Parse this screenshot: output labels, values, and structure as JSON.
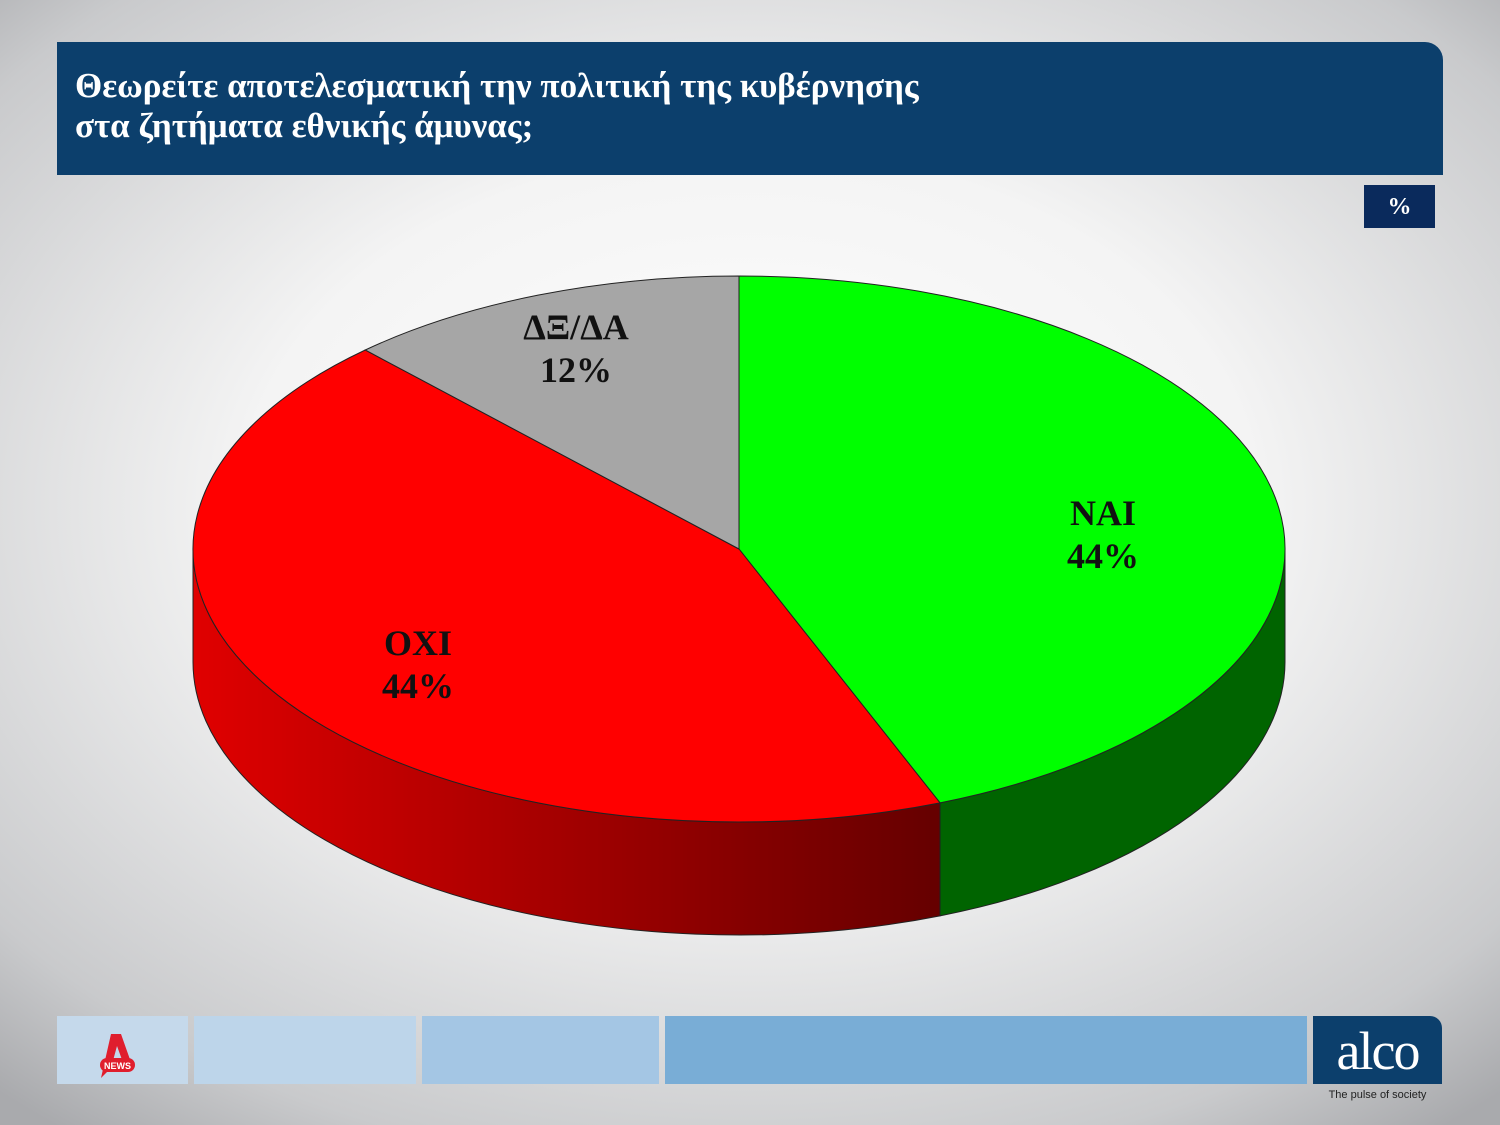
{
  "title_lines": [
    "Θεωρείτε αποτελεσματική την πολιτική της κυβέρνησης",
    "στα ζητήματα εθνικής άμυνας;"
  ],
  "unit": "%",
  "chart_data": {
    "type": "pie",
    "style": "3d",
    "title": "Θεωρείτε αποτελεσματική την πολιτική της κυβέρνησης στα ζητήματα εθνικής άμυνας;",
    "start": "top, clockwise",
    "slices": [
      {
        "label": "ΝΑΙ",
        "value": 44,
        "value_label": "44%",
        "color": "#00ff00",
        "side_color": "#006400"
      },
      {
        "label": "ΟΧΙ",
        "value": 44,
        "value_label": "44%",
        "color": "#ff0000",
        "side_color": "#b00000"
      },
      {
        "label": "ΔΞ/ΔΑ",
        "value": 12,
        "value_label": "12%",
        "color": "#a6a6a6",
        "side_color": "#707070"
      }
    ]
  },
  "footer": {
    "left_logo": "NEWS",
    "brand": "alco",
    "tagline": "The pulse of society",
    "colors": [
      "#c5d9eb",
      "#bdd5ea",
      "#a4c6e4",
      "#79add6",
      "#0c3f6c"
    ]
  }
}
